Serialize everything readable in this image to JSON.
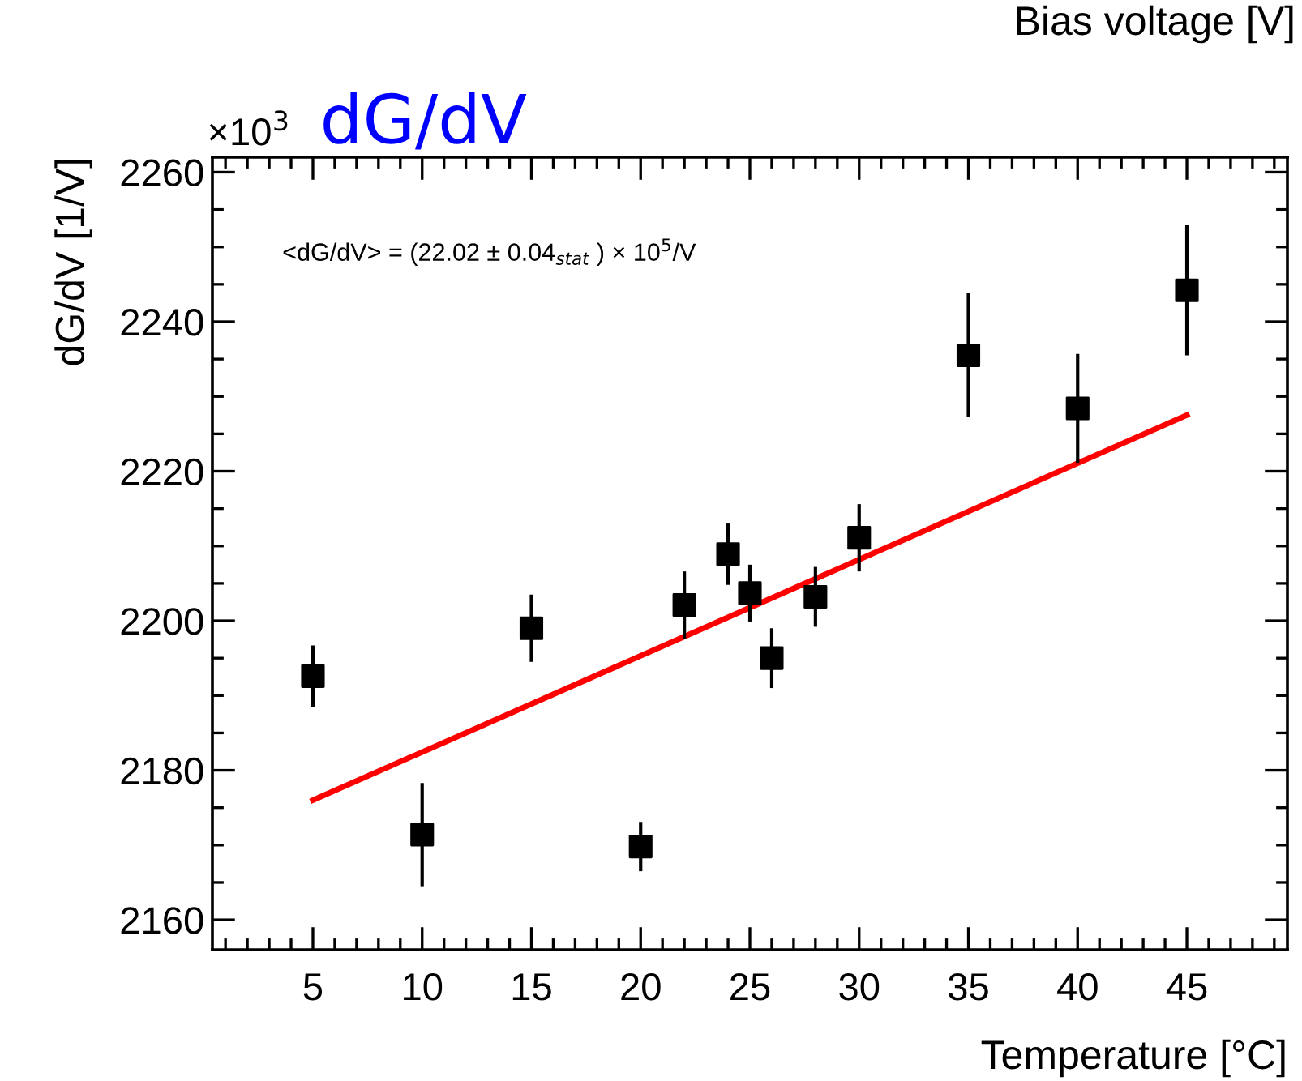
{
  "chart_data": {
    "type": "scatter",
    "title": "dG/dV",
    "xlabel": "Temperature [°C]",
    "ylabel": "dG/dV [1/V]",
    "annotations": [
      "Bias voltage [V]",
      "×10$^{3}$",
      "<dG/dV> = (22.02 ± 0.04$_{stat}$ ) × 10$^{5}$/V"
    ],
    "x": [
      5,
      10,
      15,
      20,
      22,
      24,
      25,
      26,
      28,
      30,
      35,
      40,
      45
    ],
    "series": [
      {
        "color": "#000000",
        "values": [
          2192.6,
          2171.4,
          2199.0,
          2169.8,
          2202.1,
          2208.9,
          2203.7,
          2195.0,
          2203.2,
          2211.1,
          2235.5,
          2228.4,
          2244.2
        ],
        "errors": [
          4.1,
          6.9,
          4.5,
          3.3,
          4.5,
          4.1,
          3.8,
          4.0,
          4.0,
          4.5,
          8.3,
          7.3,
          8.7
        ],
        "marker": "square"
      },
      {
        "type": "line",
        "color": "#ff0000",
        "x": [
          5,
          45
        ],
        "values": [
          2176.0,
          2227.5
        ],
        "marker": "none",
        "line_style": "solid"
      }
    ],
    "xlim": [
      0.4,
      49.6
    ],
    "ylim": [
      2156,
      2262
    ],
    "xticks": [
      5,
      10,
      15,
      20,
      25,
      30,
      35,
      40,
      45
    ],
    "yticks": [
      2160,
      2180,
      2200,
      2220,
      2240,
      2260
    ],
    "grid": false,
    "legend": false
  }
}
